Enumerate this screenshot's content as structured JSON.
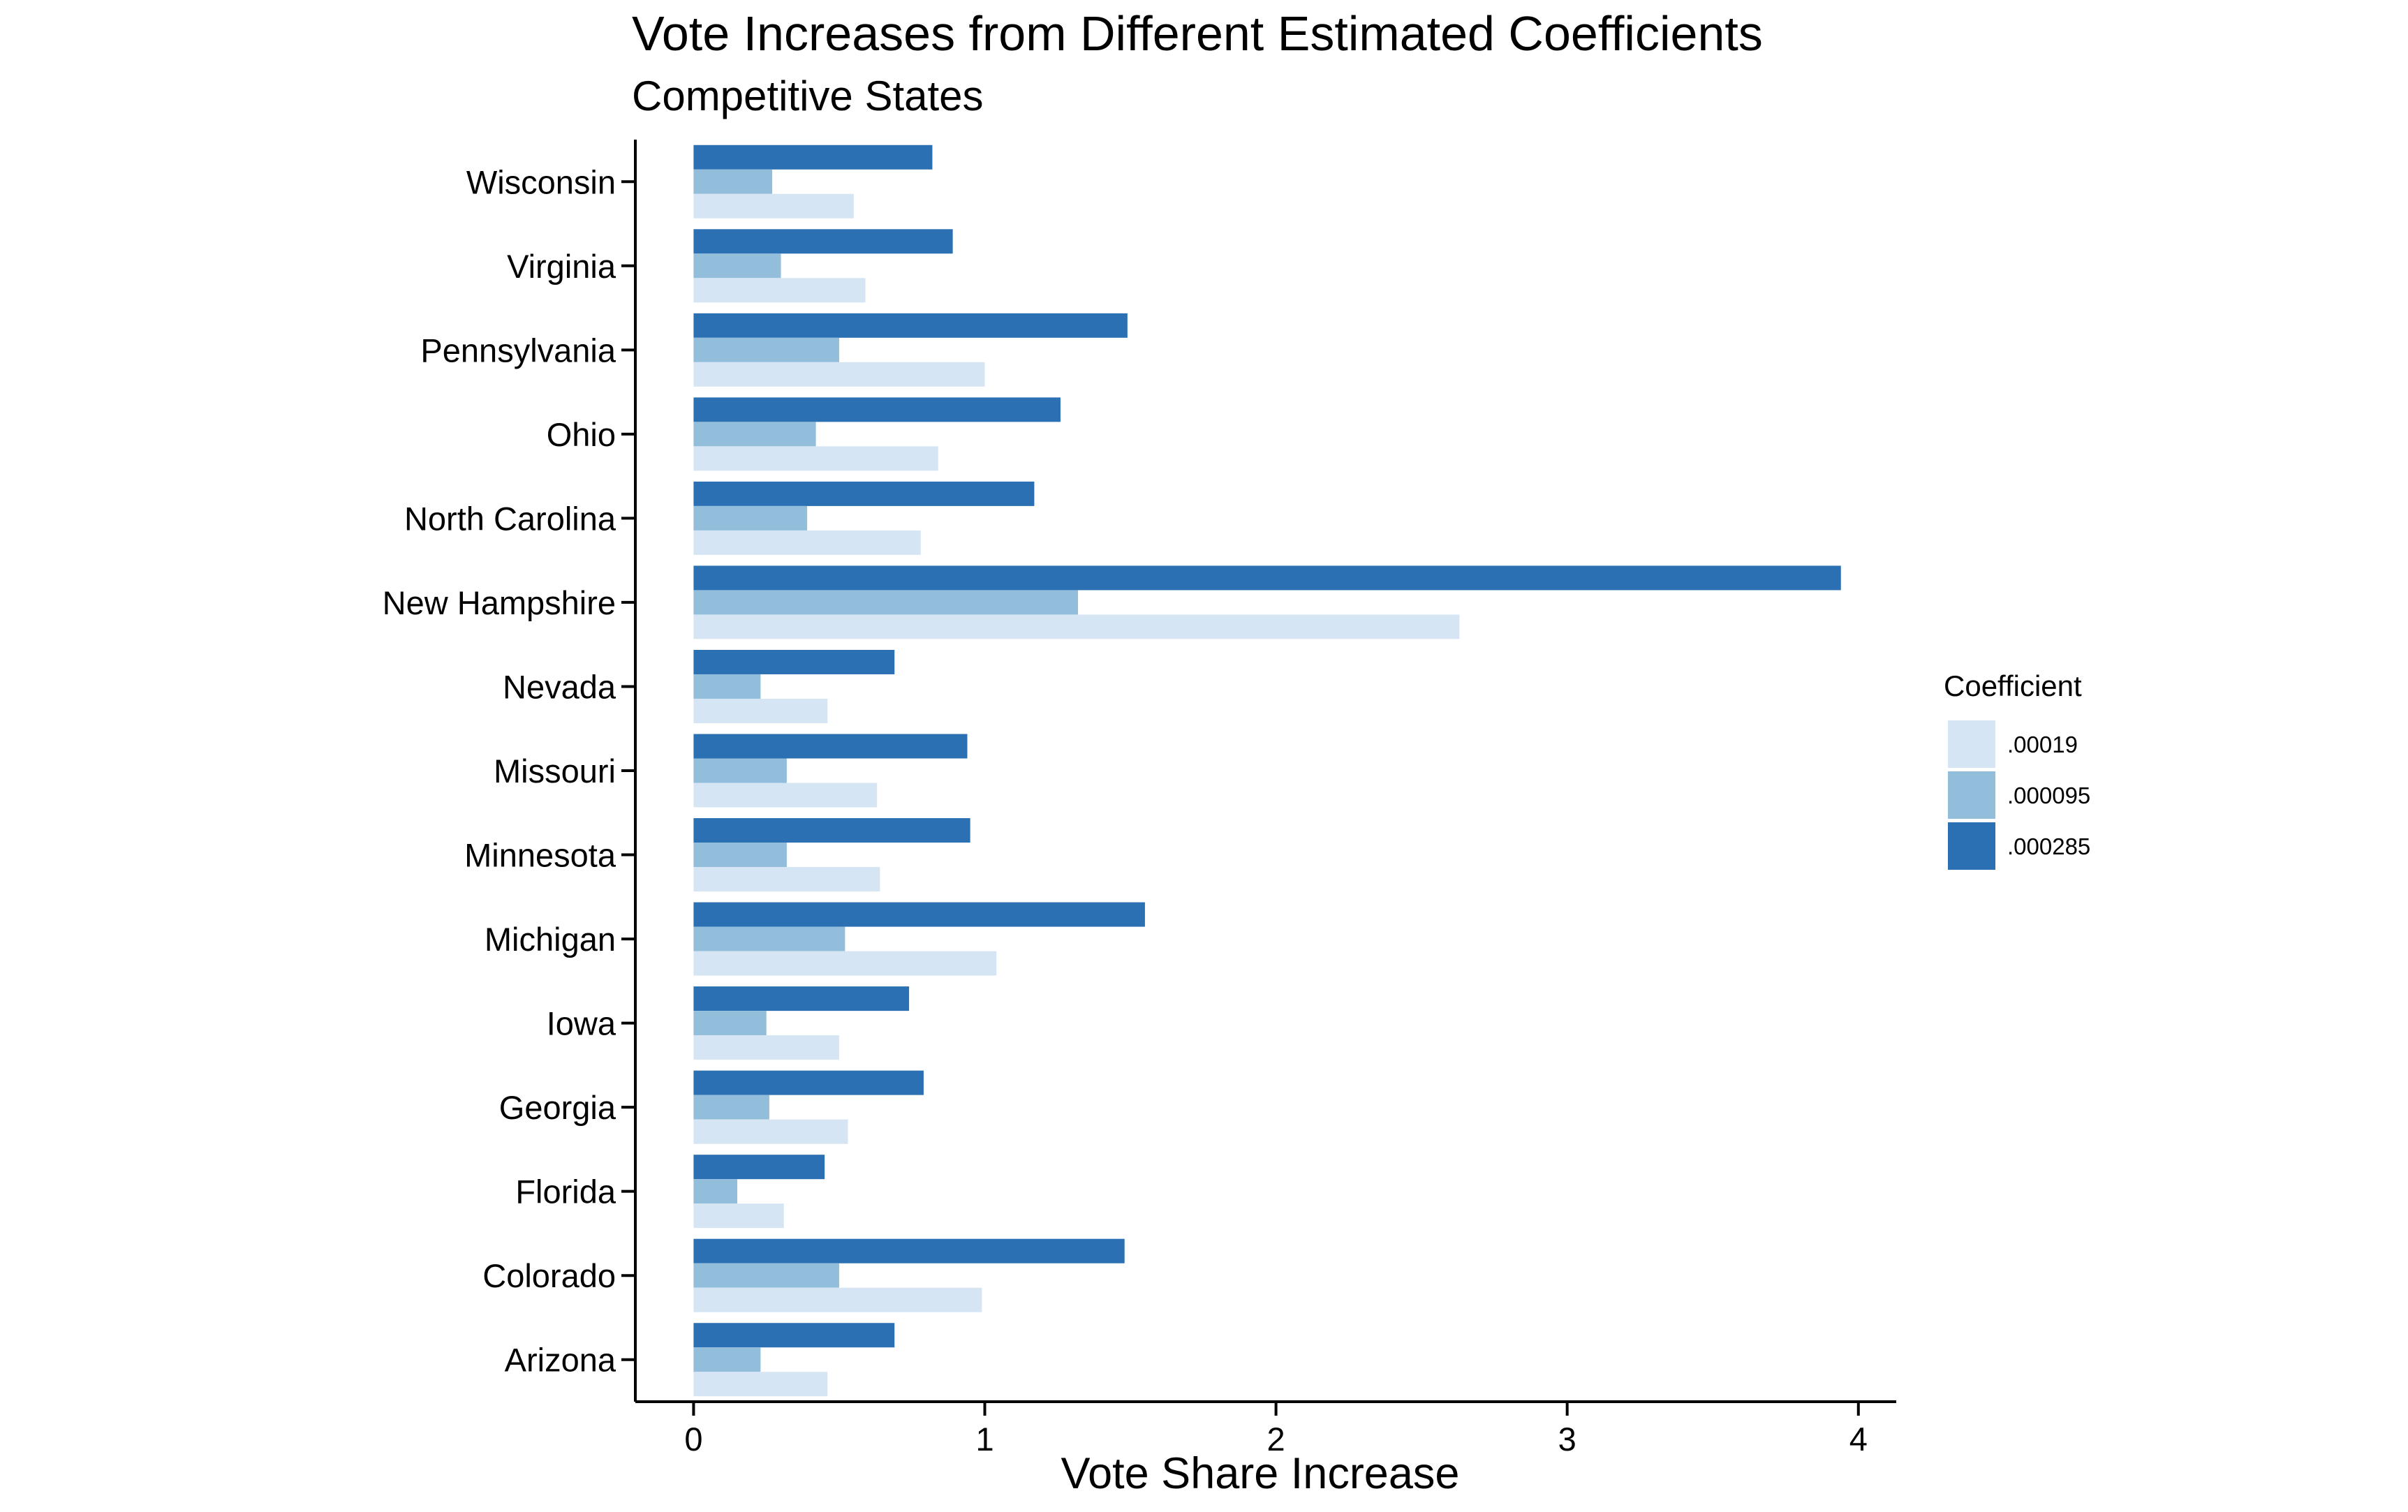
{
  "chart_data": {
    "type": "bar",
    "orientation": "horizontal",
    "title": "Vote Increases from Different Estimated Coefficients",
    "subtitle": "Competitive States",
    "xlabel": "Vote Share Increase",
    "ylabel": "",
    "xlim": [
      -0.2,
      4.13
    ],
    "xticks": [
      0,
      1,
      2,
      3,
      4
    ],
    "grid": false,
    "legend_position": "right",
    "legend_title": "Coefficient",
    "categories": [
      "Wisconsin",
      "Virginia",
      "Pennsylvania",
      "Ohio",
      "North Carolina",
      "New Hampshire",
      "Nevada",
      "Missouri",
      "Minnesota",
      "Michigan",
      "Iowa",
      "Georgia",
      "Florida",
      "Colorado",
      "Arizona"
    ],
    "series": [
      {
        "name": ".00019",
        "color": "#D6E5F4",
        "values": [
          0.55,
          0.59,
          1.0,
          0.84,
          0.78,
          2.63,
          0.46,
          0.63,
          0.64,
          1.04,
          0.5,
          0.53,
          0.31,
          0.99,
          0.46
        ]
      },
      {
        "name": ".000095",
        "color": "#92BEDC",
        "values": [
          0.27,
          0.3,
          0.5,
          0.42,
          0.39,
          1.32,
          0.23,
          0.32,
          0.32,
          0.52,
          0.25,
          0.26,
          0.15,
          0.5,
          0.23
        ]
      },
      {
        "name": ".000285",
        "color": "#2B70B2",
        "values": [
          0.82,
          0.89,
          1.49,
          1.26,
          1.17,
          3.94,
          0.69,
          0.94,
          0.95,
          1.55,
          0.74,
          0.79,
          0.45,
          1.48,
          0.69
        ]
      }
    ]
  }
}
